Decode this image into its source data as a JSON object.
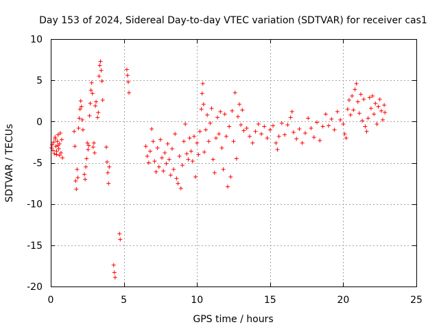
{
  "chart_data": {
    "type": "scatter",
    "title": "Day 153 of 2024, Sidereal Day-to-day VTEC variation (SDTVAR) for receiver cas1",
    "xlabel": "GPS time / hours",
    "ylabel": "SDTVAR / TECUs",
    "xlim": [
      0,
      25
    ],
    "ylim": [
      -20,
      10
    ],
    "xticks": [
      0,
      5,
      10,
      15,
      20,
      25
    ],
    "xtick_labels": [
      "0",
      "5",
      "10",
      "15",
      "20",
      "25"
    ],
    "yticks": [
      -20,
      -15,
      -10,
      -5,
      0,
      5,
      10
    ],
    "ytick_labels": [
      "-20",
      "-15",
      "-10",
      "-5",
      "0",
      "5",
      "10"
    ],
    "grid": true,
    "marker": "+",
    "series": [
      {
        "name": "SDTVAR",
        "color": "#ff0000",
        "points": [
          [
            0.05,
            -3.2
          ],
          [
            0.1,
            -2.8
          ],
          [
            0.15,
            -3.5
          ],
          [
            0.2,
            -2.5
          ],
          [
            0.25,
            -3.9
          ],
          [
            0.3,
            -2.1
          ],
          [
            0.35,
            -3.0
          ],
          [
            0.4,
            -4.0
          ],
          [
            0.45,
            -2.4
          ],
          [
            0.5,
            -1.6
          ],
          [
            0.55,
            -3.3
          ],
          [
            0.6,
            -2.7
          ],
          [
            0.65,
            -1.4
          ],
          [
            0.7,
            -3.8
          ],
          [
            0.75,
            -2.2
          ],
          [
            0.8,
            -4.4
          ],
          [
            0.4,
            -3.6
          ],
          [
            0.5,
            -2.9
          ],
          [
            0.6,
            -4.1
          ],
          [
            0.3,
            -1.9
          ],
          [
            1.6,
            -1.2
          ],
          [
            1.65,
            -3.0
          ],
          [
            1.7,
            -7.2
          ],
          [
            1.75,
            -8.2
          ],
          [
            1.8,
            -5.8
          ],
          [
            1.85,
            -6.8
          ],
          [
            1.9,
            -0.8
          ],
          [
            1.95,
            0.4
          ],
          [
            2.0,
            1.5
          ],
          [
            2.05,
            2.5
          ],
          [
            2.1,
            1.8
          ],
          [
            2.15,
            0.2
          ],
          [
            2.2,
            -1.0
          ],
          [
            2.3,
            -6.4
          ],
          [
            2.35,
            -7.0
          ],
          [
            2.4,
            -5.5
          ],
          [
            2.45,
            -4.5
          ],
          [
            2.5,
            -2.6
          ],
          [
            2.55,
            -3.4
          ],
          [
            2.6,
            -2.9
          ],
          [
            2.65,
            0.7
          ],
          [
            2.7,
            2.2
          ],
          [
            2.75,
            3.8
          ],
          [
            2.8,
            4.7
          ],
          [
            2.85,
            3.4
          ],
          [
            2.9,
            -3.1
          ],
          [
            2.95,
            -2.6
          ],
          [
            3.0,
            -3.8
          ],
          [
            3.05,
            1.9
          ],
          [
            3.1,
            2.4
          ],
          [
            3.2,
            0.5
          ],
          [
            3.25,
            1.1
          ],
          [
            3.3,
            5.5
          ],
          [
            3.35,
            6.8
          ],
          [
            3.4,
            7.3
          ],
          [
            3.45,
            6.2
          ],
          [
            3.5,
            4.9
          ],
          [
            3.55,
            2.6
          ],
          [
            3.8,
            -3.1
          ],
          [
            3.85,
            -4.9
          ],
          [
            3.9,
            -6.2
          ],
          [
            3.95,
            -7.5
          ],
          [
            4.0,
            -5.5
          ],
          [
            4.3,
            -17.4
          ],
          [
            4.35,
            -18.3
          ],
          [
            4.4,
            -18.9
          ],
          [
            4.7,
            -13.6
          ],
          [
            4.75,
            -14.3
          ],
          [
            5.2,
            6.3
          ],
          [
            5.25,
            5.6
          ],
          [
            5.3,
            4.8
          ],
          [
            5.35,
            3.5
          ],
          [
            6.5,
            -3.0
          ],
          [
            6.6,
            -4.2
          ],
          [
            6.7,
            -5.0
          ],
          [
            6.8,
            -3.6
          ],
          [
            6.9,
            -0.9
          ],
          [
            7.0,
            -2.4
          ],
          [
            7.1,
            -4.8
          ],
          [
            7.2,
            -6.1
          ],
          [
            7.3,
            -3.2
          ],
          [
            7.4,
            -5.5
          ],
          [
            7.5,
            -2.2
          ],
          [
            7.6,
            -4.4
          ],
          [
            7.7,
            -6.0
          ],
          [
            7.8,
            -3.8
          ],
          [
            7.9,
            -5.1
          ],
          [
            8.0,
            -2.7
          ],
          [
            8.1,
            -4.6
          ],
          [
            8.2,
            -6.5
          ],
          [
            8.3,
            -3.3
          ],
          [
            8.4,
            -5.8
          ],
          [
            8.5,
            -1.5
          ],
          [
            8.6,
            -6.9
          ],
          [
            8.7,
            -7.5
          ],
          [
            8.8,
            -4.2
          ],
          [
            8.9,
            -8.1
          ],
          [
            9.0,
            -5.3
          ],
          [
            9.1,
            -2.4
          ],
          [
            9.2,
            -0.3
          ],
          [
            9.3,
            -3.9
          ],
          [
            9.4,
            -4.6
          ],
          [
            9.5,
            -2.0
          ],
          [
            9.6,
            -3.6
          ],
          [
            9.7,
            -4.8
          ],
          [
            9.8,
            -1.8
          ],
          [
            9.9,
            -6.7
          ],
          [
            10.0,
            -2.6
          ],
          [
            10.1,
            -4.0
          ],
          [
            10.2,
            -1.2
          ],
          [
            10.3,
            1.5
          ],
          [
            10.35,
            3.4
          ],
          [
            10.4,
            4.6
          ],
          [
            10.45,
            2.1
          ],
          [
            10.5,
            -3.7
          ],
          [
            10.6,
            -1.0
          ],
          [
            10.7,
            0.8
          ],
          [
            10.8,
            -2.4
          ],
          [
            10.9,
            -0.2
          ],
          [
            11.0,
            1.6
          ],
          [
            11.1,
            -4.6
          ],
          [
            11.2,
            -6.2
          ],
          [
            11.3,
            -2.0
          ],
          [
            11.4,
            0.5
          ],
          [
            11.5,
            -1.5
          ],
          [
            11.6,
            1.2
          ],
          [
            11.7,
            -3.2
          ],
          [
            11.8,
            -5.8
          ],
          [
            11.9,
            0.9
          ],
          [
            12.0,
            -1.8
          ],
          [
            12.1,
            -7.9
          ],
          [
            12.2,
            -0.6
          ],
          [
            12.3,
            -6.7
          ],
          [
            12.4,
            1.3
          ],
          [
            12.5,
            -2.4
          ],
          [
            12.6,
            3.5
          ],
          [
            12.7,
            -4.5
          ],
          [
            12.8,
            0.6
          ],
          [
            12.9,
            2.1
          ],
          [
            13.0,
            -0.4
          ],
          [
            13.1,
            1.4
          ],
          [
            13.2,
            -1.1
          ],
          [
            13.4,
            -0.8
          ],
          [
            13.6,
            -1.8
          ],
          [
            13.8,
            -2.6
          ],
          [
            14.0,
            -1.2
          ],
          [
            14.2,
            -0.3
          ],
          [
            14.4,
            -1.5
          ],
          [
            14.6,
            -0.6
          ],
          [
            14.8,
            -2.0
          ],
          [
            15.0,
            -1.0
          ],
          [
            15.2,
            -0.5
          ],
          [
            15.4,
            -2.6
          ],
          [
            15.5,
            -3.4
          ],
          [
            15.6,
            -1.8
          ],
          [
            15.8,
            -0.2
          ],
          [
            16.0,
            -1.6
          ],
          [
            16.2,
            -0.4
          ],
          [
            16.4,
            0.5
          ],
          [
            16.5,
            1.2
          ],
          [
            16.6,
            -1.3
          ],
          [
            16.8,
            -2.1
          ],
          [
            17.0,
            -0.9
          ],
          [
            17.2,
            -2.6
          ],
          [
            17.4,
            -1.4
          ],
          [
            17.6,
            0.4
          ],
          [
            17.8,
            -0.8
          ],
          [
            18.0,
            -1.9
          ],
          [
            18.2,
            -0.1
          ],
          [
            18.4,
            -2.3
          ],
          [
            18.6,
            -0.6
          ],
          [
            18.8,
            0.9
          ],
          [
            19.0,
            -0.5
          ],
          [
            19.2,
            0.3
          ],
          [
            19.4,
            -1.0
          ],
          [
            19.6,
            1.2
          ],
          [
            19.8,
            0.2
          ],
          [
            20.0,
            -0.3
          ],
          [
            20.1,
            -1.5
          ],
          [
            20.2,
            -2.0
          ],
          [
            20.3,
            1.5
          ],
          [
            20.4,
            2.6
          ],
          [
            20.5,
            0.8
          ],
          [
            20.6,
            3.1
          ],
          [
            20.7,
            1.4
          ],
          [
            20.8,
            3.9
          ],
          [
            20.9,
            4.6
          ],
          [
            21.0,
            2.4
          ],
          [
            21.1,
            1.0
          ],
          [
            21.2,
            3.3
          ],
          [
            21.3,
            0.1
          ],
          [
            21.4,
            2.7
          ],
          [
            21.5,
            -0.6
          ],
          [
            21.6,
            -1.2
          ],
          [
            21.7,
            0.4
          ],
          [
            21.8,
            2.9
          ],
          [
            21.9,
            1.6
          ],
          [
            22.0,
            3.1
          ],
          [
            22.1,
            0.9
          ],
          [
            22.2,
            2.2
          ],
          [
            22.3,
            -0.3
          ],
          [
            22.4,
            1.8
          ],
          [
            22.5,
            2.7
          ],
          [
            22.6,
            1.3
          ],
          [
            22.7,
            0.2
          ],
          [
            22.8,
            2.0
          ],
          [
            22.85,
            1.1
          ]
        ]
      }
    ]
  }
}
